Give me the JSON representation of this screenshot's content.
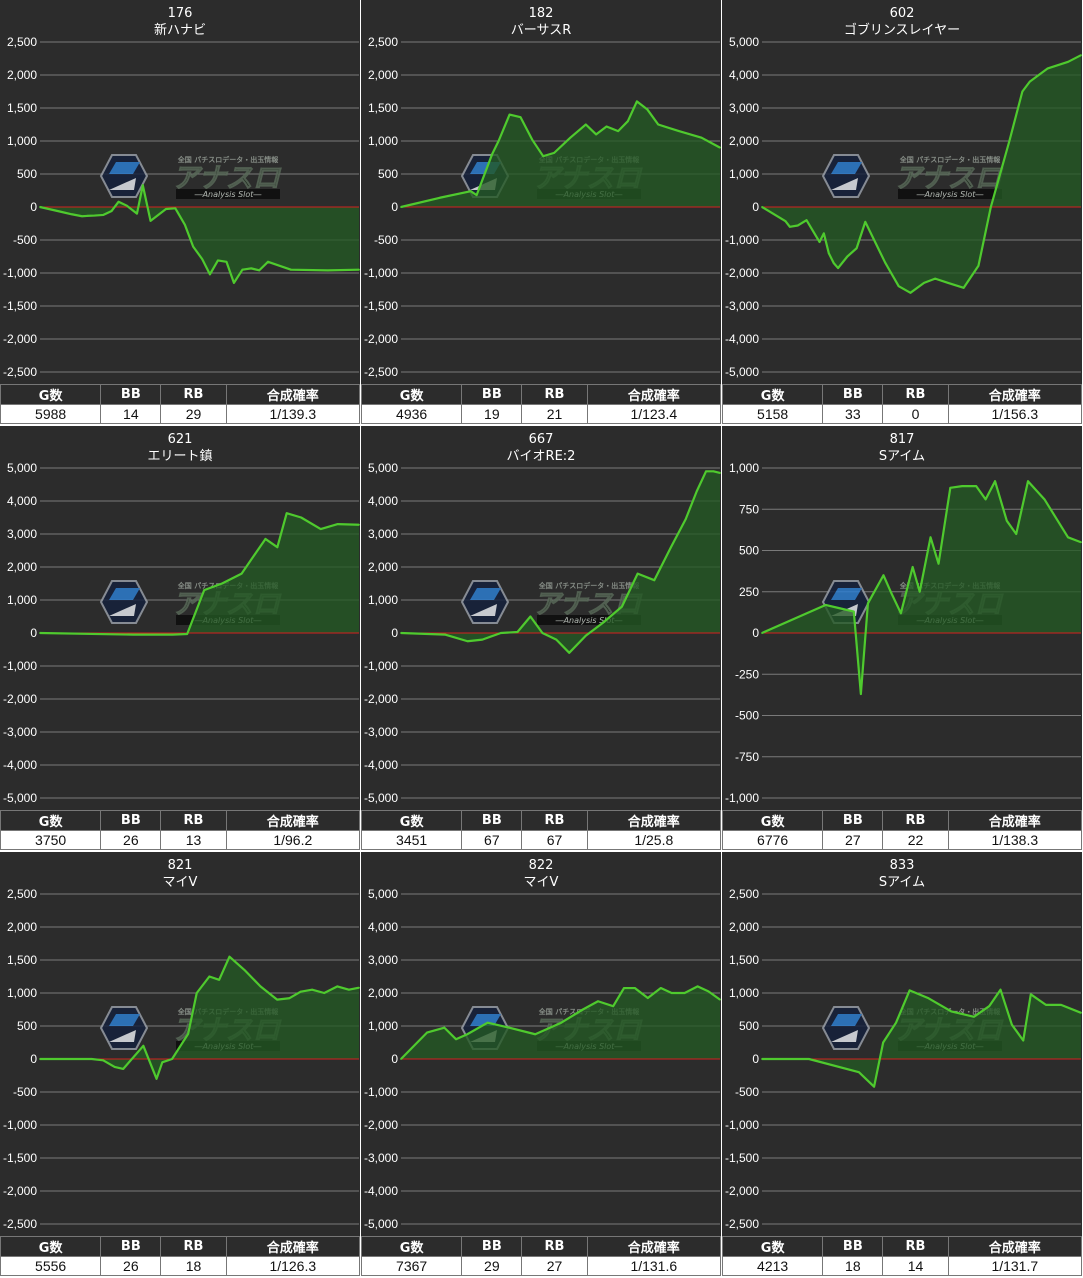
{
  "headers": {
    "g": "G数",
    "bb": "BB",
    "rb": "RB",
    "prob": "合成確率"
  },
  "watermark": {
    "top": "全国 パチスロデータ・出玉情報",
    "main": "アナスロ",
    "sub": "―Analysis Slot―"
  },
  "colors": {
    "line": "#4fca2e",
    "fill": "#245a24",
    "zero_line": "#d42020",
    "grid": "#7a7a7a",
    "panel_bg": "#2c2c2c"
  },
  "chart_data": [
    {
      "type": "area",
      "number": "176",
      "name": "新ハナビ",
      "ylim": [
        -2500,
        2500
      ],
      "yticks": [
        2500,
        2000,
        1500,
        1000,
        500,
        0,
        -500,
        -1000,
        -1500,
        -2000,
        -2500
      ],
      "ytick_labels": [
        "2,500",
        "2,000",
        "1,500",
        "1,000",
        "500",
        "0",
        "-500",
        "-1,000",
        "-1,500",
        "-2,000",
        "-2,500"
      ],
      "x": [
        0,
        380,
        595,
        790,
        880,
        1025,
        1190,
        1345,
        1475,
        1630,
        1820,
        1930,
        2075,
        2365,
        2540,
        2720,
        2875,
        3045,
        3190,
        3340,
        3500,
        3640,
        3800,
        3965,
        4115,
        4280,
        4710,
        5400,
        5988
      ],
      "y": [
        0,
        -70,
        -110,
        -140,
        -135,
        -130,
        -120,
        -60,
        80,
        20,
        -100,
        330,
        -210,
        -30,
        -20,
        -270,
        -600,
        -790,
        -1020,
        -810,
        -830,
        -1150,
        -950,
        -930,
        -960,
        -830,
        -950,
        -960,
        -950
      ],
      "stats": {
        "g": "5988",
        "bb": "14",
        "rb": "29",
        "prob": "1/139.3"
      }
    },
    {
      "type": "area",
      "number": "182",
      "name": "バーサスR",
      "ylim": [
        -2500,
        2500
      ],
      "yticks": [
        2500,
        2000,
        1500,
        1000,
        500,
        0,
        -500,
        -1000,
        -1500,
        -2000,
        -2500
      ],
      "ytick_labels": [
        "2,500",
        "2,000",
        "1,500",
        "1,000",
        "500",
        "0",
        "-500",
        "-1,000",
        "-1,500",
        "-2,000",
        "-2,500"
      ],
      "x": [
        0,
        600,
        1080,
        1170,
        1410,
        1510,
        1680,
        1850,
        2030,
        2200,
        2370,
        2620,
        2860,
        3020,
        3180,
        3360,
        3510,
        3650,
        3810,
        3980,
        4300,
        4650,
        4936
      ],
      "y": [
        0,
        140,
        240,
        180,
        800,
        1000,
        1400,
        1360,
        1020,
        770,
        820,
        1050,
        1250,
        1100,
        1220,
        1150,
        1300,
        1600,
        1480,
        1250,
        1150,
        1050,
        900
      ],
      "stats": {
        "g": "4936",
        "bb": "19",
        "rb": "21",
        "prob": "1/123.4"
      }
    },
    {
      "type": "area",
      "number": "602",
      "name": "ゴブリンスレイヤー",
      "ylim": [
        -5000,
        5000
      ],
      "yticks": [
        5000,
        4000,
        3000,
        2000,
        1000,
        0,
        -1000,
        -2000,
        -3000,
        -4000,
        -5000
      ],
      "ytick_labels": [
        "5,000",
        "4,000",
        "3,000",
        "2,000",
        "1,000",
        "0",
        "-1,000",
        "-2,000",
        "-3,000",
        "-4,000",
        "-5,000"
      ],
      "x": [
        0,
        380,
        450,
        580,
        720,
        930,
        1000,
        1080,
        1160,
        1230,
        1380,
        1530,
        1670,
        1990,
        2210,
        2400,
        2620,
        2800,
        3010,
        3260,
        3500,
        3700,
        4000,
        4210,
        4330,
        4620,
        4950,
        5158
      ],
      "y": [
        0,
        -430,
        -600,
        -560,
        -400,
        -1060,
        -800,
        -1400,
        -1700,
        -1850,
        -1500,
        -1250,
        -450,
        -1680,
        -2400,
        -2600,
        -2300,
        -2170,
        -2300,
        -2450,
        -1780,
        0,
        2000,
        3500,
        3800,
        4200,
        4400,
        4600
      ],
      "stats": {
        "g": "5158",
        "bb": "33",
        "rb": "0",
        "prob": "1/156.3"
      }
    },
    {
      "type": "area",
      "number": "621",
      "name": "エリート鎮",
      "ylim": [
        -5000,
        5000
      ],
      "yticks": [
        5000,
        4000,
        3000,
        2000,
        1000,
        0,
        -1000,
        -2000,
        -3000,
        -4000,
        -5000
      ],
      "ytick_labels": [
        "5,000",
        "4,000",
        "3,000",
        "2,000",
        "1,000",
        "0",
        "-1,000",
        "-2,000",
        "-3,000",
        "-4,000",
        "-5,000"
      ],
      "x": [
        0,
        1100,
        1560,
        1730,
        1930,
        2140,
        2370,
        2650,
        2790,
        2900,
        3070,
        3300,
        3500,
        3750
      ],
      "y": [
        0,
        -50,
        -50,
        -30,
        1300,
        1500,
        1800,
        2850,
        2600,
        3630,
        3500,
        3150,
        3300,
        3280
      ],
      "stats": {
        "g": "3750",
        "bb": "26",
        "rb": "13",
        "prob": "1/96.2"
      }
    },
    {
      "type": "area",
      "number": "667",
      "name": "バイオRE:2",
      "ylim": [
        -5000,
        5000
      ],
      "yticks": [
        5000,
        4000,
        3000,
        2000,
        1000,
        0,
        -1000,
        -2000,
        -3000,
        -4000,
        -5000
      ],
      "ytick_labels": [
        "5,000",
        "4,000",
        "3,000",
        "2,000",
        "1,000",
        "0",
        "-1,000",
        "-2,000",
        "-3,000",
        "-4,000",
        "-5,000"
      ],
      "x": [
        0,
        480,
        720,
        880,
        1080,
        1260,
        1400,
        1530,
        1680,
        1820,
        2000,
        2180,
        2390,
        2560,
        2740,
        2920,
        3080,
        3200,
        3300,
        3380,
        3451
      ],
      "y": [
        0,
        -50,
        -250,
        -200,
        0,
        30,
        500,
        0,
        -200,
        -600,
        -80,
        300,
        800,
        1800,
        1600,
        2600,
        3450,
        4300,
        4900,
        4900,
        4850
      ],
      "stats": {
        "g": "3451",
        "bb": "67",
        "rb": "67",
        "prob": "1/25.8"
      }
    },
    {
      "type": "area",
      "number": "817",
      "name": "Sアイム",
      "ylim": [
        -1000,
        1000
      ],
      "yticks": [
        1000,
        750,
        500,
        250,
        0,
        -250,
        -500,
        -750,
        -1000
      ],
      "ytick_labels": [
        "1,000",
        "750",
        "500",
        "250",
        "0",
        "-250",
        "-500",
        "-750",
        "-1,000"
      ],
      "x": [
        0,
        1350,
        1650,
        1950,
        2100,
        2250,
        2580,
        2750,
        2950,
        3200,
        3350,
        3580,
        3750,
        4000,
        4250,
        4550,
        4750,
        4950,
        5200,
        5400,
        5650,
        6000,
        6500,
        6776
      ],
      "y": [
        0,
        170,
        150,
        130,
        -370,
        180,
        350,
        240,
        120,
        400,
        250,
        580,
        420,
        880,
        890,
        890,
        810,
        920,
        680,
        600,
        920,
        810,
        580,
        550
      ],
      "stats": {
        "g": "6776",
        "bb": "27",
        "rb": "22",
        "prob": "1/138.3"
      }
    },
    {
      "type": "area",
      "number": "821",
      "name": "マイV",
      "ylim": [
        -2500,
        2500
      ],
      "yticks": [
        2500,
        2000,
        1500,
        1000,
        500,
        0,
        -500,
        -1000,
        -1500,
        -2000,
        -2500
      ],
      "ytick_labels": [
        "2,500",
        "2,000",
        "1,500",
        "1,000",
        "500",
        "0",
        "-500",
        "-1,000",
        "-1,500",
        "-2,000",
        "-2,500"
      ],
      "x": [
        0,
        900,
        1100,
        1300,
        1450,
        1800,
        2030,
        2130,
        2300,
        2580,
        2730,
        2950,
        3120,
        3300,
        3560,
        3840,
        4130,
        4340,
        4540,
        4740,
        4950,
        5180,
        5380,
        5556
      ],
      "y": [
        0,
        0,
        -20,
        -120,
        -150,
        200,
        -300,
        -50,
        0,
        380,
        1000,
        1250,
        1200,
        1550,
        1350,
        1100,
        900,
        920,
        1020,
        1050,
        1000,
        1100,
        1050,
        1080
      ],
      "stats": {
        "g": "5556",
        "bb": "26",
        "rb": "18",
        "prob": "1/126.3"
      }
    },
    {
      "type": "area",
      "number": "822",
      "name": "マイV",
      "ylim": [
        -5000,
        5000
      ],
      "yticks": [
        5000,
        4000,
        3000,
        2000,
        1000,
        0,
        -1000,
        -2000,
        -3000,
        -4000,
        -5000
      ],
      "ytick_labels": [
        "5,000",
        "4,000",
        "3,000",
        "2,000",
        "1,000",
        "0",
        "-1,000",
        "-2,000",
        "-3,000",
        "-4,000",
        "-5,000"
      ],
      "x": [
        0,
        600,
        1000,
        1270,
        1530,
        2000,
        2500,
        3100,
        3700,
        4200,
        4550,
        4900,
        5150,
        5400,
        5700,
        6000,
        6250,
        6550,
        6850,
        7100,
        7367
      ],
      "y": [
        0,
        800,
        950,
        600,
        750,
        1100,
        950,
        750,
        1100,
        1500,
        1750,
        1600,
        2150,
        2150,
        1850,
        2150,
        2000,
        2000,
        2200,
        2050,
        1800
      ],
      "stats": {
        "g": "7367",
        "bb": "29",
        "rb": "27",
        "prob": "1/131.6"
      }
    },
    {
      "type": "area",
      "number": "833",
      "name": "Sアイム",
      "ylim": [
        -2500,
        2500
      ],
      "yticks": [
        2500,
        2000,
        1500,
        1000,
        500,
        0,
        -500,
        -1000,
        -1500,
        -2000,
        -2500
      ],
      "ytick_labels": [
        "2,500",
        "2,000",
        "1,500",
        "1,000",
        "500",
        "0",
        "-500",
        "-1,000",
        "-1,500",
        "-2,000",
        "-2,500"
      ],
      "x": [
        0,
        620,
        1280,
        1480,
        1600,
        1770,
        1950,
        2200,
        2500,
        2800,
        3000,
        3150,
        3300,
        3450,
        3550,
        3750,
        3950,
        4213
      ],
      "y": [
        0,
        0,
        -200,
        -420,
        250,
        550,
        1040,
        920,
        720,
        640,
        800,
        1050,
        520,
        280,
        980,
        820,
        820,
        700
      ],
      "stats": {
        "g": "4213",
        "bb": "18",
        "rb": "14",
        "prob": "1/131.7"
      }
    }
  ]
}
